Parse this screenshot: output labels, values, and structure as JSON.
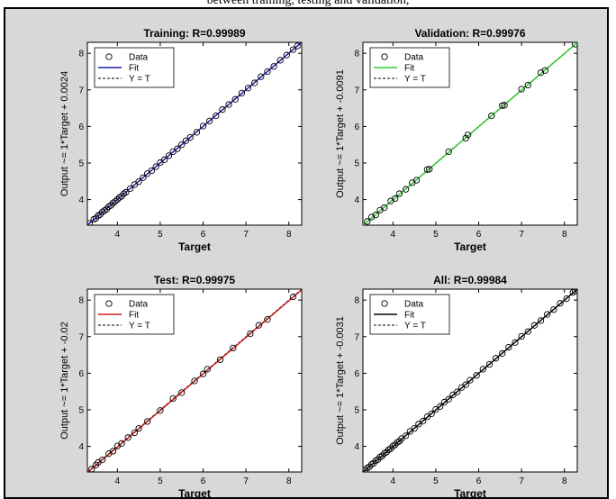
{
  "caption": "between training, testing and validation,",
  "colors": {
    "background": "#d8d8d8",
    "training_fit": "#1a1aa8",
    "validation_fit": "#33cc33",
    "test_fit": "#cc2222",
    "all_fit": "#000000",
    "data_marker": "#000000"
  },
  "chart_data": [
    {
      "type": "scatter",
      "title": "Training: R=0.99989",
      "xlabel": "Target",
      "ylabel": "Output ~= 1*Target + 0.0024",
      "xlim": [
        3.3,
        8.3
      ],
      "ylim": [
        3.3,
        8.3
      ],
      "xticks": [
        4,
        5,
        6,
        7,
        8
      ],
      "yticks": [
        4,
        5,
        6,
        7,
        8
      ],
      "grid": false,
      "legend_position": "top-left",
      "legend": [
        "Data",
        "Fit",
        "Y = T"
      ],
      "fit": {
        "slope": 1,
        "intercept": 0.0024,
        "color": "#1a1aa8"
      },
      "points": [
        [
          3.35,
          3.35
        ],
        [
          3.45,
          3.46
        ],
        [
          3.5,
          3.49
        ],
        [
          3.55,
          3.56
        ],
        [
          3.6,
          3.59
        ],
        [
          3.65,
          3.66
        ],
        [
          3.7,
          3.7
        ],
        [
          3.75,
          3.74
        ],
        [
          3.8,
          3.81
        ],
        [
          3.85,
          3.84
        ],
        [
          3.9,
          3.91
        ],
        [
          3.95,
          3.95
        ],
        [
          4.0,
          4.0
        ],
        [
          4.05,
          4.06
        ],
        [
          4.1,
          4.09
        ],
        [
          4.15,
          4.16
        ],
        [
          4.2,
          4.2
        ],
        [
          4.3,
          4.3
        ],
        [
          4.4,
          4.41
        ],
        [
          4.5,
          4.49
        ],
        [
          4.6,
          4.6
        ],
        [
          4.7,
          4.71
        ],
        [
          4.8,
          4.79
        ],
        [
          4.9,
          4.9
        ],
        [
          5.0,
          5.01
        ],
        [
          5.1,
          5.09
        ],
        [
          5.2,
          5.2
        ],
        [
          5.3,
          5.31
        ],
        [
          5.4,
          5.39
        ],
        [
          5.5,
          5.5
        ],
        [
          5.6,
          5.61
        ],
        [
          5.7,
          5.7
        ],
        [
          5.85,
          5.84
        ],
        [
          6.0,
          6.01
        ],
        [
          6.15,
          6.15
        ],
        [
          6.3,
          6.29
        ],
        [
          6.45,
          6.46
        ],
        [
          6.6,
          6.6
        ],
        [
          6.75,
          6.74
        ],
        [
          6.9,
          6.91
        ],
        [
          7.05,
          7.05
        ],
        [
          7.2,
          7.19
        ],
        [
          7.35,
          7.36
        ],
        [
          7.5,
          7.5
        ],
        [
          7.65,
          7.64
        ],
        [
          7.8,
          7.81
        ],
        [
          7.95,
          7.95
        ],
        [
          8.1,
          8.1
        ],
        [
          8.2,
          8.2
        ]
      ]
    },
    {
      "type": "scatter",
      "title": "Validation: R=0.99976",
      "xlabel": "Target",
      "ylabel": "Output ~= 1*Target + -0.0091",
      "xlim": [
        3.3,
        8.3
      ],
      "ylim": [
        3.3,
        8.3
      ],
      "xticks": [
        4,
        5,
        6,
        7,
        8
      ],
      "yticks": [
        4,
        5,
        6,
        7,
        8
      ],
      "grid": false,
      "legend_position": "top-left",
      "legend": [
        "Data",
        "Fit",
        "Y = T"
      ],
      "fit": {
        "slope": 1,
        "intercept": -0.0091,
        "color": "#33cc33"
      },
      "points": [
        [
          3.4,
          3.4
        ],
        [
          3.5,
          3.52
        ],
        [
          3.6,
          3.58
        ],
        [
          3.7,
          3.71
        ],
        [
          3.8,
          3.78
        ],
        [
          3.95,
          3.96
        ],
        [
          4.05,
          4.03
        ],
        [
          4.15,
          4.16
        ],
        [
          4.3,
          4.28
        ],
        [
          4.45,
          4.46
        ],
        [
          4.55,
          4.53
        ],
        [
          4.8,
          4.82
        ],
        [
          4.85,
          4.83
        ],
        [
          5.3,
          5.31
        ],
        [
          5.7,
          5.68
        ],
        [
          5.75,
          5.77
        ],
        [
          6.3,
          6.29
        ],
        [
          6.55,
          6.57
        ],
        [
          6.6,
          6.58
        ],
        [
          7.0,
          7.02
        ],
        [
          7.15,
          7.13
        ],
        [
          7.45,
          7.47
        ],
        [
          7.55,
          7.53
        ],
        [
          8.25,
          8.25
        ]
      ]
    },
    {
      "type": "scatter",
      "title": "Test: R=0.99975",
      "xlabel": "Target",
      "ylabel": "Output ~= 1*Target + -0.02",
      "xlim": [
        3.3,
        8.3
      ],
      "ylim": [
        3.3,
        8.3
      ],
      "xticks": [
        4,
        5,
        6,
        7,
        8
      ],
      "yticks": [
        4,
        5,
        6,
        7,
        8
      ],
      "grid": false,
      "legend_position": "top-left",
      "legend": [
        "Data",
        "Fit",
        "Y = T"
      ],
      "fit": {
        "slope": 1,
        "intercept": -0.02,
        "color": "#cc2222"
      },
      "points": [
        [
          3.4,
          3.38
        ],
        [
          3.5,
          3.49
        ],
        [
          3.55,
          3.56
        ],
        [
          3.65,
          3.63
        ],
        [
          3.8,
          3.8
        ],
        [
          3.9,
          3.87
        ],
        [
          4.0,
          4.01
        ],
        [
          4.1,
          4.08
        ],
        [
          4.25,
          4.24
        ],
        [
          4.4,
          4.37
        ],
        [
          4.5,
          4.49
        ],
        [
          4.7,
          4.68
        ],
        [
          5.0,
          4.98
        ],
        [
          5.3,
          5.31
        ],
        [
          5.5,
          5.47
        ],
        [
          5.8,
          5.79
        ],
        [
          6.0,
          5.98
        ],
        [
          6.1,
          6.11
        ],
        [
          6.4,
          6.37
        ],
        [
          6.7,
          6.69
        ],
        [
          7.1,
          7.08
        ],
        [
          7.3,
          7.31
        ],
        [
          7.5,
          7.47
        ],
        [
          8.1,
          8.09
        ]
      ]
    },
    {
      "type": "scatter",
      "title": "All: R=0.99984",
      "xlabel": "Target",
      "ylabel": "Output ~= 1*Target + -0.0031",
      "xlim": [
        3.3,
        8.3
      ],
      "ylim": [
        3.3,
        8.3
      ],
      "xticks": [
        4,
        5,
        6,
        7,
        8
      ],
      "yticks": [
        4,
        5,
        6,
        7,
        8
      ],
      "grid": false,
      "legend_position": "top-left",
      "legend": [
        "Data",
        "Fit",
        "Y = T"
      ],
      "fit": {
        "slope": 1,
        "intercept": -0.0031,
        "color": "#000000"
      },
      "points": [
        [
          3.35,
          3.35
        ],
        [
          3.4,
          3.41
        ],
        [
          3.45,
          3.44
        ],
        [
          3.5,
          3.51
        ],
        [
          3.55,
          3.54
        ],
        [
          3.6,
          3.61
        ],
        [
          3.65,
          3.64
        ],
        [
          3.7,
          3.71
        ],
        [
          3.75,
          3.74
        ],
        [
          3.8,
          3.81
        ],
        [
          3.85,
          3.84
        ],
        [
          3.9,
          3.91
        ],
        [
          3.95,
          3.94
        ],
        [
          4.0,
          4.01
        ],
        [
          4.05,
          4.04
        ],
        [
          4.1,
          4.11
        ],
        [
          4.15,
          4.14
        ],
        [
          4.2,
          4.21
        ],
        [
          4.3,
          4.29
        ],
        [
          4.4,
          4.41
        ],
        [
          4.5,
          4.49
        ],
        [
          4.6,
          4.61
        ],
        [
          4.7,
          4.69
        ],
        [
          4.8,
          4.81
        ],
        [
          4.9,
          4.89
        ],
        [
          5.0,
          5.01
        ],
        [
          5.1,
          5.09
        ],
        [
          5.2,
          5.21
        ],
        [
          5.3,
          5.29
        ],
        [
          5.4,
          5.41
        ],
        [
          5.5,
          5.49
        ],
        [
          5.6,
          5.61
        ],
        [
          5.7,
          5.69
        ],
        [
          5.8,
          5.81
        ],
        [
          5.95,
          5.94
        ],
        [
          6.1,
          6.11
        ],
        [
          6.25,
          6.24
        ],
        [
          6.4,
          6.41
        ],
        [
          6.55,
          6.54
        ],
        [
          6.7,
          6.71
        ],
        [
          6.85,
          6.84
        ],
        [
          7.0,
          7.01
        ],
        [
          7.15,
          7.14
        ],
        [
          7.3,
          7.31
        ],
        [
          7.45,
          7.44
        ],
        [
          7.6,
          7.61
        ],
        [
          7.75,
          7.74
        ],
        [
          7.9,
          7.91
        ],
        [
          8.05,
          8.04
        ],
        [
          8.2,
          8.21
        ],
        [
          8.25,
          8.25
        ]
      ]
    }
  ]
}
